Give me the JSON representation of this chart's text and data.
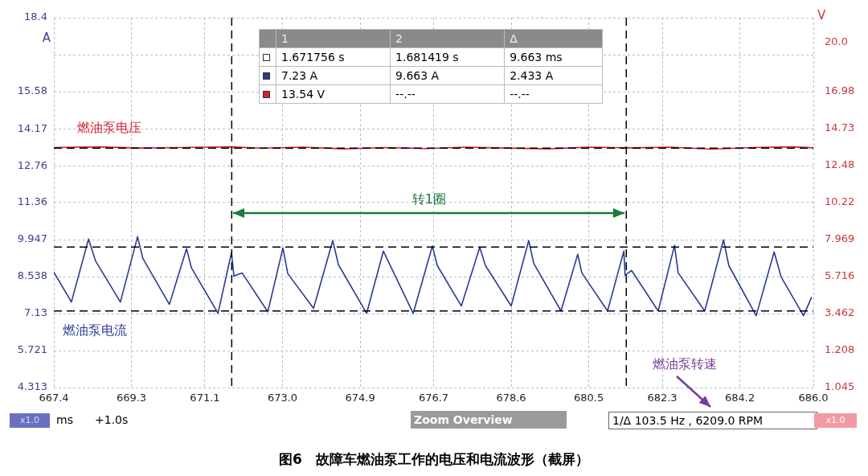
{
  "chart_data": {
    "type": "line",
    "title": "图6　故障车燃油泵工作的电压和电流波形（截屏）",
    "xlabel": "ms",
    "ylabel": "A",
    "y2label": "V",
    "xlim": [
      667.4,
      686.0
    ],
    "xticks": [
      667.4,
      669.3,
      671.1,
      {
        "value": 673.0,
        "label": "673.0"
      },
      674.9,
      676.7,
      678.6,
      680.5,
      682.3,
      684.2,
      {
        "value": 686.0,
        "label": "686.0"
      }
    ],
    "ylim": [
      4.313,
      18.4
    ],
    "yticks": [
      18.4,
      {
        "value": 16.99,
        "label": null
      },
      15.58,
      14.17,
      12.76,
      11.36,
      9.947,
      8.538,
      7.13,
      5.721,
      4.313
    ],
    "y2lim": [
      -1.045,
      21.49
    ],
    "y2ticks": [
      {
        "value": 20.0,
        "label": "20.0"
      },
      16.98,
      14.73,
      12.48,
      10.22,
      7.969,
      5.716,
      3.462,
      1.208,
      {
        "value": -1.045,
        "label": "1.045"
      }
    ],
    "grid": true,
    "legend": false,
    "marker": "none",
    "series": [
      {
        "name": "燃油泵电压",
        "color": "#d8202a",
        "axis": "y2",
        "x": [
          667.4,
          668.5,
          669.5,
          670.5,
          671.7,
          672.5,
          673.5,
          674.5,
          675.5,
          676.5,
          677.5,
          678.5,
          679.5,
          680.5,
          681.5,
          682.5,
          683.5,
          684.5,
          685.5,
          686.0
        ],
        "values": [
          13.58,
          13.62,
          13.55,
          13.58,
          13.62,
          13.54,
          13.6,
          13.5,
          13.58,
          13.52,
          13.6,
          13.55,
          13.5,
          13.6,
          13.56,
          13.6,
          13.48,
          13.58,
          13.62,
          13.56
        ]
      },
      {
        "name": "燃油泵电流",
        "color": "#2b3a93",
        "axis": "y",
        "x": [
          667.4,
          667.83,
          668.25,
          668.42,
          669.03,
          669.45,
          669.58,
          670.23,
          670.65,
          670.77,
          671.42,
          671.75,
          671.81,
          672.01,
          672.64,
          673.01,
          673.13,
          673.76,
          674.23,
          674.37,
          675.06,
          675.47,
          676.2,
          676.67,
          676.79,
          677.38,
          677.83,
          677.97,
          678.6,
          679.03,
          679.15,
          679.82,
          680.23,
          680.33,
          680.96,
          681.36,
          681.39,
          681.55,
          682.2,
          682.6,
          682.69,
          683.34,
          683.8,
          683.93,
          684.6,
          685.04,
          685.21,
          685.76,
          685.96
        ],
        "values": [
          8.71,
          7.57,
          9.97,
          9.14,
          7.57,
          10.06,
          9.23,
          7.48,
          9.6,
          8.87,
          7.14,
          9.45,
          8.56,
          8.68,
          7.2,
          9.63,
          8.65,
          7.33,
          9.91,
          8.99,
          7.14,
          9.51,
          7.14,
          9.7,
          8.96,
          7.42,
          9.66,
          8.96,
          7.42,
          9.91,
          9.05,
          7.23,
          9.39,
          8.68,
          7.23,
          9.51,
          8.59,
          8.77,
          7.23,
          9.73,
          8.68,
          7.23,
          9.94,
          8.96,
          7.05,
          9.48,
          8.53,
          7.05,
          7.76
        ]
      }
    ],
    "ref_lines": [
      {
        "axis": "y",
        "value": 9.663,
        "color": "#000000",
        "line_style": "dashed"
      },
      {
        "axis": "y",
        "value": 7.23,
        "color": "#000000",
        "line_style": "dashed"
      },
      {
        "axis": "y2",
        "value": 13.54,
        "color": "#000000",
        "line_style": "dashed"
      },
      {
        "axis": "x",
        "value": 671.756,
        "color": "#000000",
        "line_style": "dashed"
      },
      {
        "axis": "x",
        "value": 681.419,
        "color": "#000000",
        "line_style": "dashed"
      }
    ],
    "annotations": [
      "转1圈",
      "燃油泵转速",
      "1",
      "2",
      "Δ",
      "1.671756 s",
      "1.681419 s",
      "9.663 ms",
      "7.23 A",
      "9.663 A",
      "2.433 A",
      "13.54 V",
      "--.--",
      "--.--",
      "x1.0",
      "+1.0s",
      "Zoom Overview",
      "1/Δ",
      "103.5 Hz , 6209.0 RPM",
      "x1.0"
    ]
  }
}
